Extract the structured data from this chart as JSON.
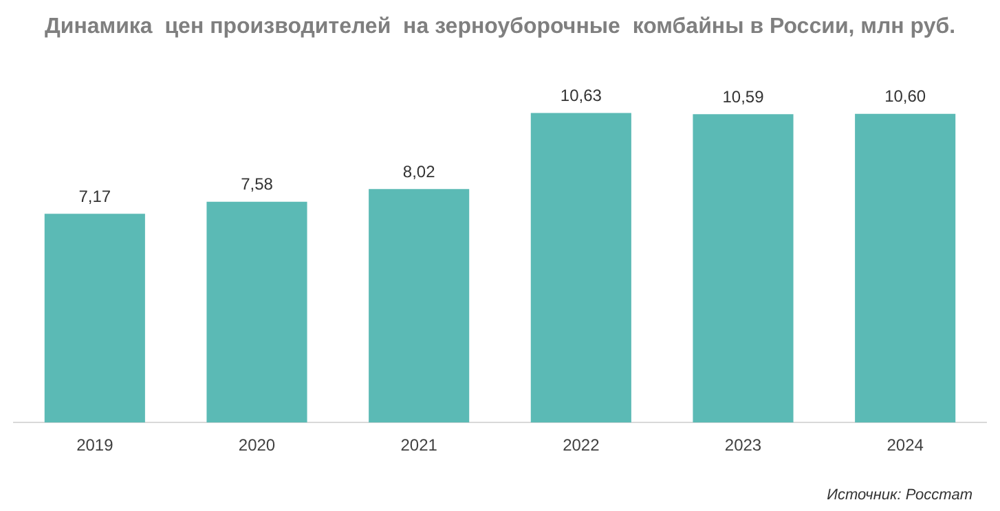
{
  "chart_data": {
    "type": "bar",
    "title": "Динамика  цен производителей  на зерноуборочные  комбайны в России, млн руб.",
    "categories": [
      "2019",
      "2020",
      "2021",
      "2022",
      "2023",
      "2024"
    ],
    "values": [
      7.17,
      7.58,
      8.02,
      10.63,
      10.59,
      10.6
    ],
    "value_labels": [
      "7,17",
      "7,58",
      "8,02",
      "10,63",
      "10,59",
      "10,60"
    ],
    "color": "#5bbab5",
    "grid": false,
    "legend": false,
    "annotations": [
      "Источник: Росстат"
    ]
  }
}
